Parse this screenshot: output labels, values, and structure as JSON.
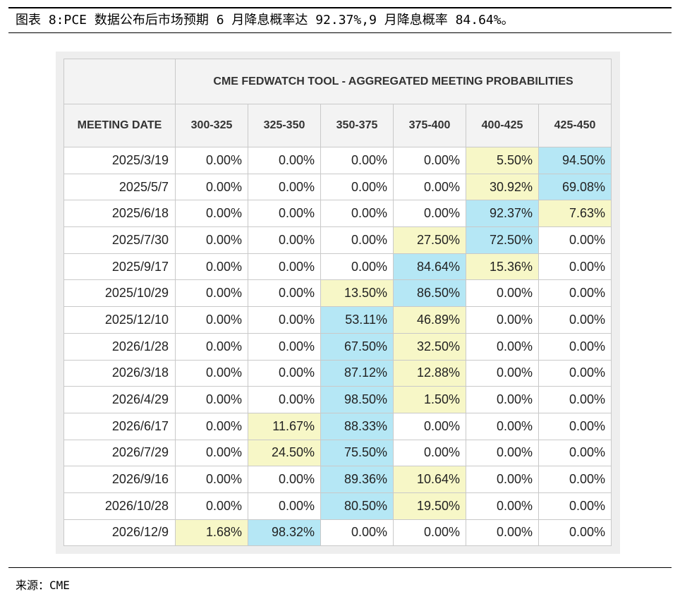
{
  "caption": "图表 8:PCE 数据公布后市场预期 6 月降息概率达 92.37%,9 月降息概率 84.64%。",
  "table": {
    "title": "CME FEDWATCH TOOL - AGGREGATED MEETING PROBABILITIES",
    "date_header": "MEETING DATE",
    "columns": [
      "300-325",
      "325-350",
      "350-375",
      "375-400",
      "400-425",
      "425-450"
    ],
    "rows": [
      {
        "date": "2025/3/19",
        "values": [
          "0.00%",
          "0.00%",
          "0.00%",
          "0.00%",
          "5.50%",
          "94.50%"
        ]
      },
      {
        "date": "2025/5/7",
        "values": [
          "0.00%",
          "0.00%",
          "0.00%",
          "0.00%",
          "30.92%",
          "69.08%"
        ]
      },
      {
        "date": "2025/6/18",
        "values": [
          "0.00%",
          "0.00%",
          "0.00%",
          "0.00%",
          "92.37%",
          "7.63%"
        ]
      },
      {
        "date": "2025/7/30",
        "values": [
          "0.00%",
          "0.00%",
          "0.00%",
          "27.50%",
          "72.50%",
          "0.00%"
        ]
      },
      {
        "date": "2025/9/17",
        "values": [
          "0.00%",
          "0.00%",
          "0.00%",
          "84.64%",
          "15.36%",
          "0.00%"
        ]
      },
      {
        "date": "2025/10/29",
        "values": [
          "0.00%",
          "0.00%",
          "13.50%",
          "86.50%",
          "0.00%",
          "0.00%"
        ]
      },
      {
        "date": "2025/12/10",
        "values": [
          "0.00%",
          "0.00%",
          "53.11%",
          "46.89%",
          "0.00%",
          "0.00%"
        ]
      },
      {
        "date": "2026/1/28",
        "values": [
          "0.00%",
          "0.00%",
          "67.50%",
          "32.50%",
          "0.00%",
          "0.00%"
        ]
      },
      {
        "date": "2026/3/18",
        "values": [
          "0.00%",
          "0.00%",
          "87.12%",
          "12.88%",
          "0.00%",
          "0.00%"
        ]
      },
      {
        "date": "2026/4/29",
        "values": [
          "0.00%",
          "0.00%",
          "98.50%",
          "1.50%",
          "0.00%",
          "0.00%"
        ]
      },
      {
        "date": "2026/6/17",
        "values": [
          "0.00%",
          "11.67%",
          "88.33%",
          "0.00%",
          "0.00%",
          "0.00%"
        ]
      },
      {
        "date": "2026/7/29",
        "values": [
          "0.00%",
          "24.50%",
          "75.50%",
          "0.00%",
          "0.00%",
          "0.00%"
        ]
      },
      {
        "date": "2026/9/16",
        "values": [
          "0.00%",
          "0.00%",
          "89.36%",
          "10.64%",
          "0.00%",
          "0.00%"
        ]
      },
      {
        "date": "2026/10/28",
        "values": [
          "0.00%",
          "0.00%",
          "80.50%",
          "19.50%",
          "0.00%",
          "0.00%"
        ]
      },
      {
        "date": "2026/12/9",
        "values": [
          "1.68%",
          "98.32%",
          "0.00%",
          "0.00%",
          "0.00%",
          "0.00%"
        ]
      }
    ],
    "colors": {
      "highest": "#b5e7f5",
      "second": "#f7f7c7"
    }
  },
  "source": "来源：CME"
}
